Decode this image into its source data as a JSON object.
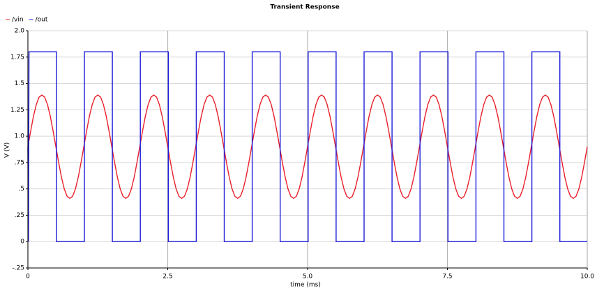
{
  "chart_data": {
    "type": "line",
    "title": "Transient Response",
    "xlabel": "time (ms)",
    "ylabel": "V (V)",
    "xlim": [
      0,
      10
    ],
    "ylim": [
      -0.25,
      2
    ],
    "xticks": [
      0,
      2.5,
      {
        "value": 5,
        "label": "5.0"
      },
      7.5,
      {
        "value": 10,
        "label": "10.0"
      }
    ],
    "yticks": [
      {
        "value": 2,
        "label": "2.0"
      },
      1.75,
      {
        "value": 1.5,
        "label": "1.5"
      },
      1.25,
      {
        "value": 1,
        "label": "1.0"
      },
      {
        "value": 0.75,
        "label": ".75"
      },
      {
        "value": 0.5,
        "label": ".5"
      },
      {
        "value": 0.25,
        "label": ".25"
      },
      0,
      {
        "value": -0.25,
        "label": "-.25"
      }
    ],
    "grid": true,
    "legend": "top-left",
    "series": [
      {
        "name": "/vin",
        "color": "#e8202a",
        "x": [
          0,
          0.05,
          0.1,
          0.15,
          0.2,
          0.25,
          0.3,
          0.35,
          0.4,
          0.45,
          0.5,
          0.55,
          0.6,
          0.65,
          0.7,
          0.75,
          0.8,
          0.85,
          0.9,
          0.95,
          1,
          1.05,
          1.1,
          1.15,
          1.2,
          1.25,
          1.3,
          1.35,
          1.4,
          1.45,
          1.5,
          1.55,
          1.6,
          1.65,
          1.7,
          1.75,
          1.8,
          1.85,
          1.9,
          1.95,
          2,
          2.05,
          2.1,
          2.15,
          2.2,
          2.25,
          2.3,
          2.35,
          2.4,
          2.45,
          2.5,
          2.55,
          2.6,
          2.65,
          2.7,
          2.75,
          2.8,
          2.85,
          2.9,
          2.95,
          3,
          3.05,
          3.1,
          3.15,
          3.2,
          3.25,
          3.3,
          3.35,
          3.4,
          3.45,
          3.5,
          3.55,
          3.6,
          3.65,
          3.7,
          3.75,
          3.8,
          3.85,
          3.9,
          3.95,
          4,
          4.05,
          4.1,
          4.15,
          4.2,
          4.25,
          4.3,
          4.35,
          4.4,
          4.45,
          4.5,
          4.55,
          4.6,
          4.65,
          4.7,
          4.75,
          4.8,
          4.85,
          4.9,
          4.95,
          5,
          5.05,
          5.1,
          5.15,
          5.2,
          5.25,
          5.3,
          5.35,
          5.4,
          5.45,
          5.5,
          5.55,
          5.6,
          5.65,
          5.7,
          5.75,
          5.8,
          5.85,
          5.9,
          5.95,
          6,
          6.05,
          6.1,
          6.15,
          6.2,
          6.25,
          6.3,
          6.35,
          6.4,
          6.45,
          6.5,
          6.55,
          6.6,
          6.65,
          6.7,
          6.75,
          6.8,
          6.85,
          6.9,
          6.95,
          7,
          7.05,
          7.1,
          7.15,
          7.2,
          7.25,
          7.3,
          7.35,
          7.4,
          7.45,
          7.5,
          7.55,
          7.6,
          7.65,
          7.7,
          7.75,
          7.8,
          7.85,
          7.9,
          7.95,
          8,
          8.05,
          8.1,
          8.15,
          8.2,
          8.25,
          8.3,
          8.35,
          8.4,
          8.45,
          8.5,
          8.55,
          8.6,
          8.65,
          8.7,
          8.75,
          8.8,
          8.85,
          8.9,
          8.95,
          9,
          9.05,
          9.1,
          9.15,
          9.2,
          9.25,
          9.3,
          9.35,
          9.4,
          9.45,
          9.5,
          9.55,
          9.6,
          9.65,
          9.7,
          9.75,
          9.8,
          9.85,
          9.9,
          9.95,
          10
        ],
        "values": [
          0.9,
          1.05,
          1.19,
          1.3,
          1.37,
          1.39,
          1.37,
          1.3,
          1.19,
          1.05,
          0.9,
          0.75,
          0.61,
          0.5,
          0.43,
          0.41,
          0.43,
          0.5,
          0.61,
          0.75,
          0.9,
          1.05,
          1.19,
          1.3,
          1.37,
          1.39,
          1.37,
          1.3,
          1.19,
          1.05,
          0.9,
          0.75,
          0.61,
          0.5,
          0.43,
          0.41,
          0.43,
          0.5,
          0.61,
          0.75,
          0.9,
          1.05,
          1.19,
          1.3,
          1.37,
          1.39,
          1.37,
          1.3,
          1.19,
          1.05,
          0.9,
          0.75,
          0.61,
          0.5,
          0.43,
          0.41,
          0.43,
          0.5,
          0.61,
          0.75,
          0.9,
          1.05,
          1.19,
          1.3,
          1.37,
          1.39,
          1.37,
          1.3,
          1.19,
          1.05,
          0.9,
          0.75,
          0.61,
          0.5,
          0.43,
          0.41,
          0.43,
          0.5,
          0.61,
          0.75,
          0.9,
          1.05,
          1.19,
          1.3,
          1.37,
          1.39,
          1.37,
          1.3,
          1.19,
          1.05,
          0.9,
          0.75,
          0.61,
          0.5,
          0.43,
          0.41,
          0.43,
          0.5,
          0.61,
          0.75,
          0.9,
          1.05,
          1.19,
          1.3,
          1.37,
          1.39,
          1.37,
          1.3,
          1.19,
          1.05,
          0.9,
          0.75,
          0.61,
          0.5,
          0.43,
          0.41,
          0.43,
          0.5,
          0.61,
          0.75,
          0.9,
          1.05,
          1.19,
          1.3,
          1.37,
          1.39,
          1.37,
          1.3,
          1.19,
          1.05,
          0.9,
          0.75,
          0.61,
          0.5,
          0.43,
          0.41,
          0.43,
          0.5,
          0.61,
          0.75,
          0.9,
          1.05,
          1.19,
          1.3,
          1.37,
          1.39,
          1.37,
          1.3,
          1.19,
          1.05,
          0.9,
          0.75,
          0.61,
          0.5,
          0.43,
          0.41,
          0.43,
          0.5,
          0.61,
          0.75,
          0.9,
          1.05,
          1.19,
          1.3,
          1.37,
          1.39,
          1.37,
          1.3,
          1.19,
          1.05,
          0.9,
          0.75,
          0.61,
          0.5,
          0.43,
          0.41,
          0.43,
          0.5,
          0.61,
          0.75,
          0.9,
          1.05,
          1.19,
          1.3,
          1.37,
          1.39,
          1.37,
          1.3,
          1.19,
          1.05,
          0.9,
          0.75,
          0.61,
          0.5,
          0.43,
          0.41,
          0.43,
          0.5,
          0.61,
          0.75,
          0.9
        ]
      },
      {
        "name": "/out",
        "color": "#1c1cdc",
        "x": [
          0,
          0.01,
          0.02,
          0.51,
          0.51,
          1.01,
          1.01,
          1.51,
          1.51,
          2.01,
          2.01,
          2.51,
          2.51,
          3.01,
          3.01,
          3.51,
          3.51,
          4.01,
          4.01,
          4.51,
          4.51,
          5.01,
          5.01,
          5.51,
          5.51,
          6.01,
          6.01,
          6.51,
          6.51,
          7.01,
          7.01,
          7.51,
          7.51,
          8.01,
          8.01,
          8.51,
          8.51,
          9.01,
          9.01,
          9.51,
          9.51,
          10
        ],
        "values": [
          0.9,
          0,
          1.8,
          1.8,
          0,
          0,
          1.8,
          1.8,
          0,
          0,
          1.8,
          1.8,
          0,
          0,
          1.8,
          1.8,
          0,
          0,
          1.8,
          1.8,
          0,
          0,
          1.8,
          1.8,
          0,
          0,
          1.8,
          1.8,
          0,
          0,
          1.8,
          1.8,
          0,
          0,
          1.8,
          1.8,
          0,
          0,
          1.8,
          1.8,
          0,
          0
        ]
      }
    ]
  }
}
